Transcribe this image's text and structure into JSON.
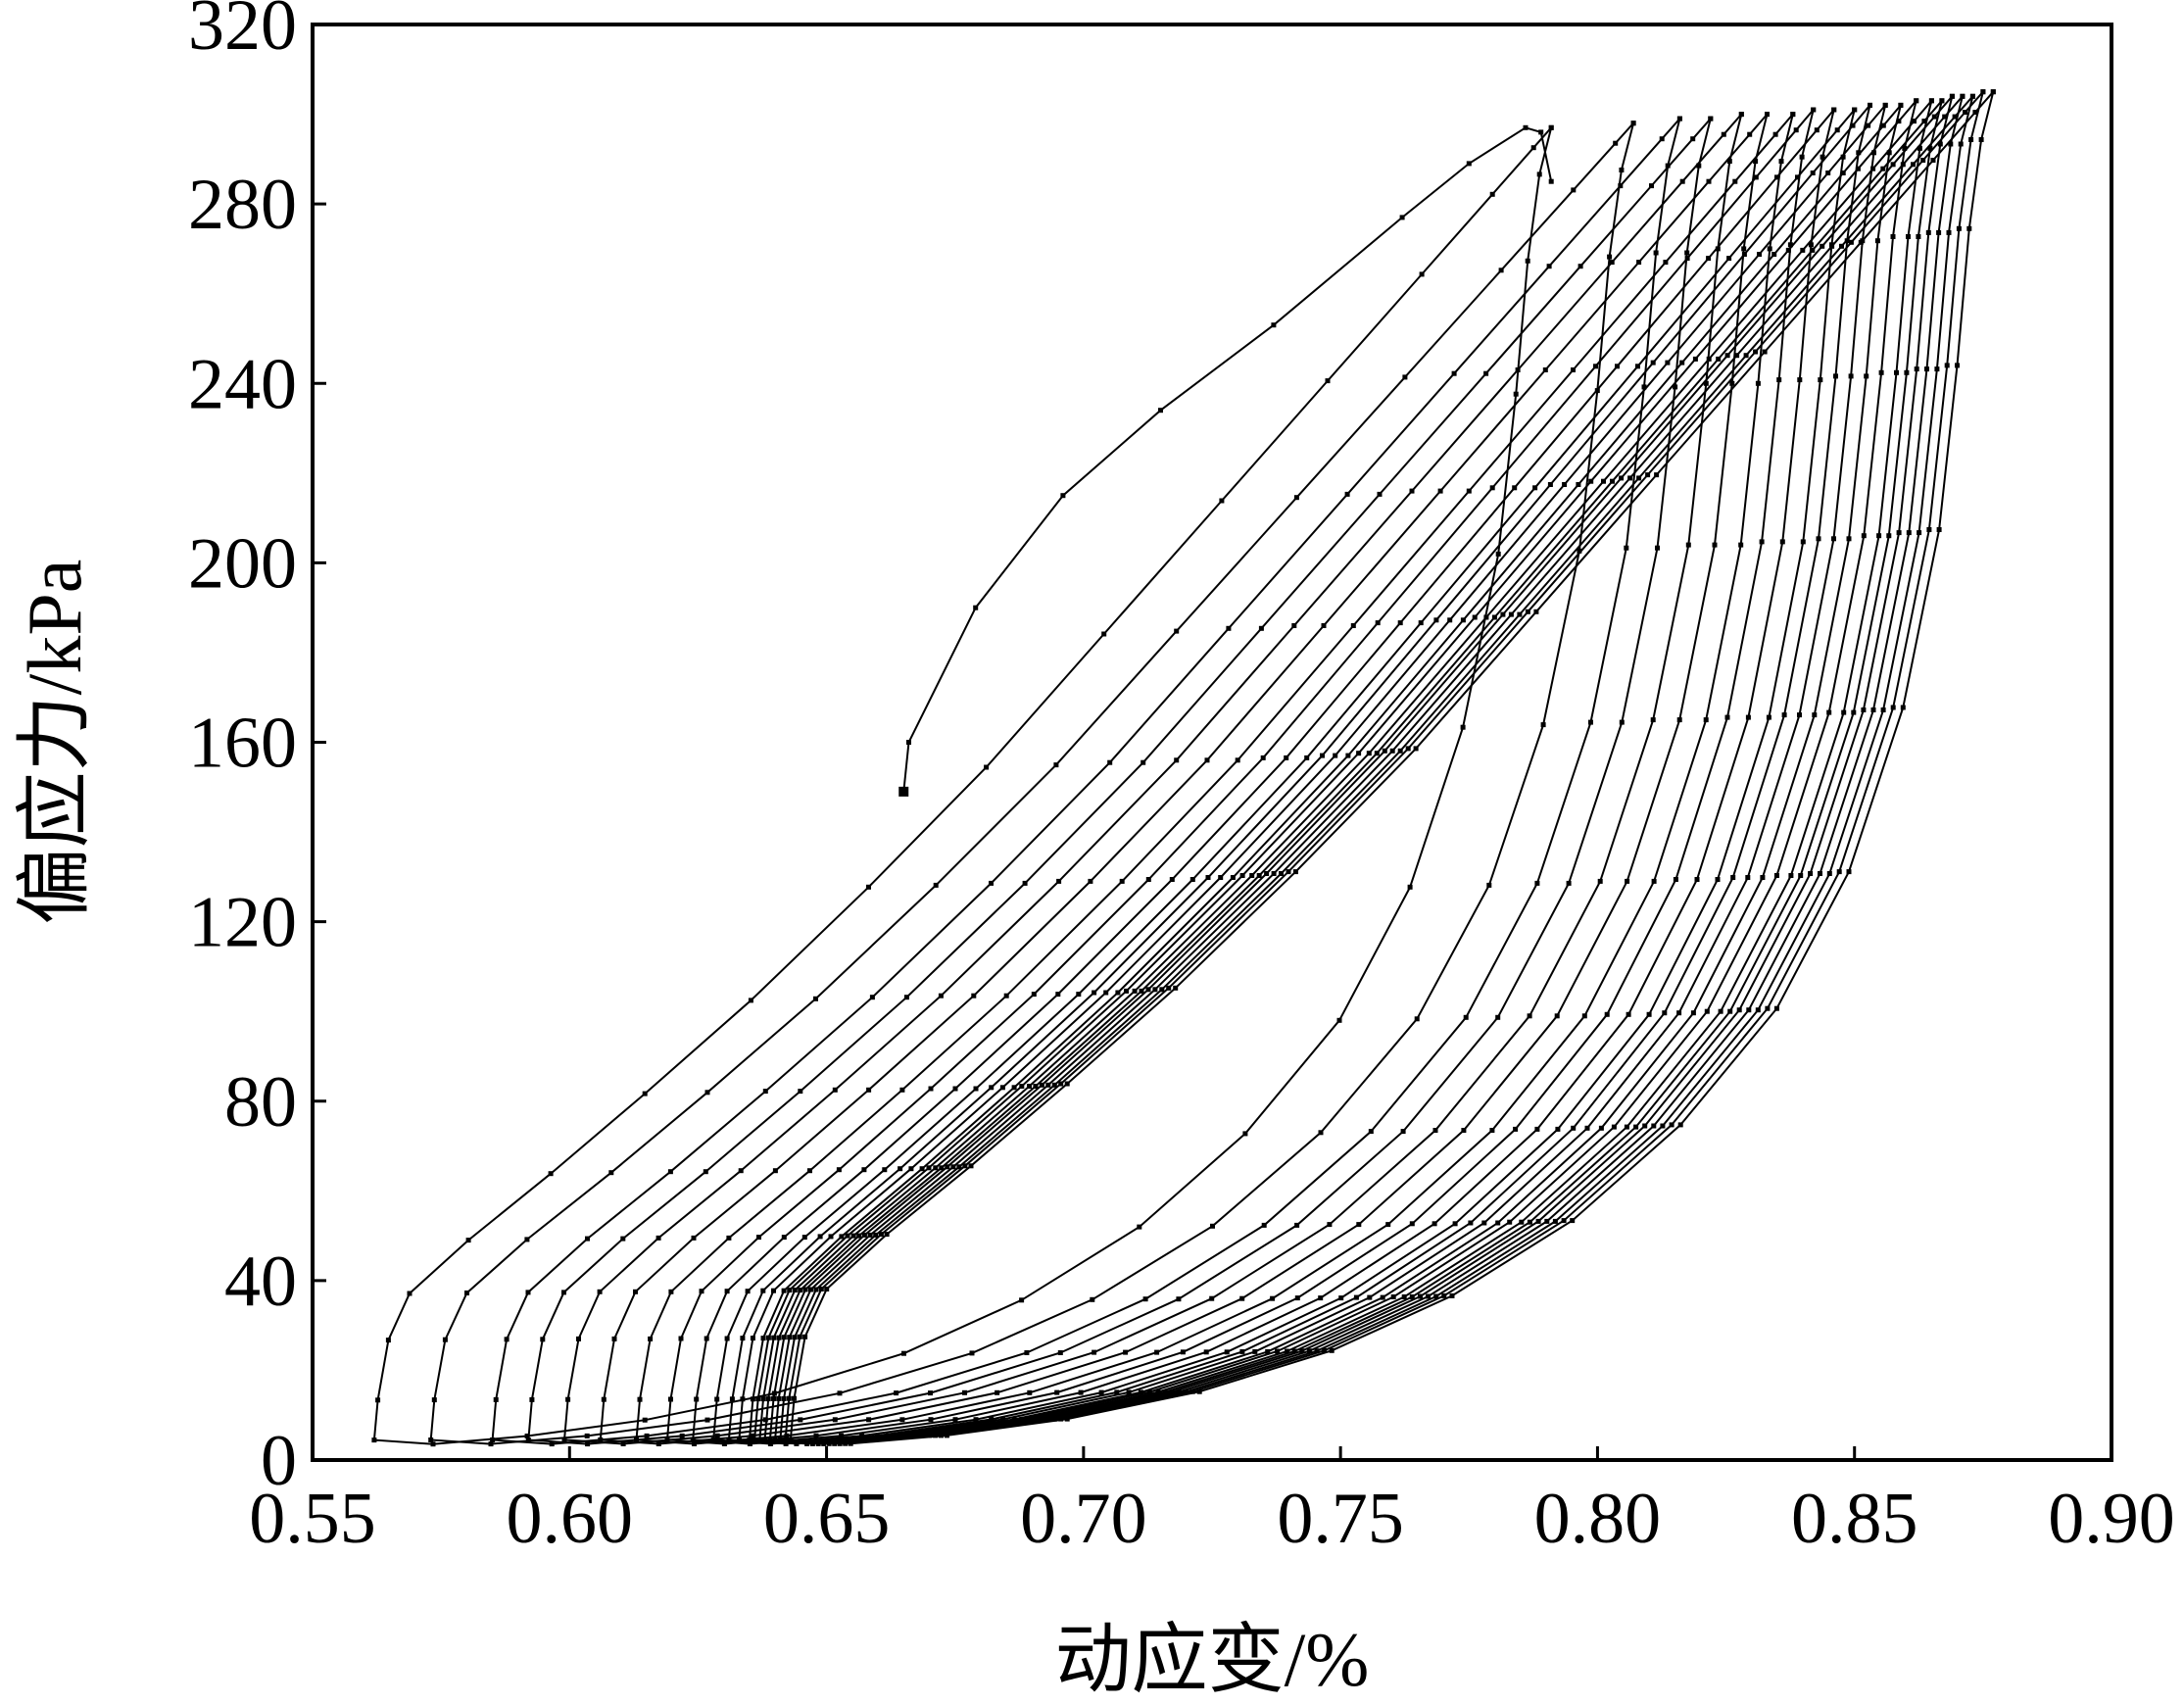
{
  "chart_data": {
    "type": "line",
    "xlabel": "动应变/%",
    "ylabel": "偏应力/kPa",
    "xlim": [
      0.55,
      0.9
    ],
    "ylim": [
      0,
      320
    ],
    "x_ticks": [
      0.55,
      0.6,
      0.65,
      0.7,
      0.75,
      0.8,
      0.85,
      0.9
    ],
    "y_ticks": [
      0,
      40,
      80,
      120,
      160,
      200,
      240,
      280,
      320
    ],
    "x_tick_labels": [
      "0.55",
      "0.60",
      "0.65",
      "0.70",
      "0.75",
      "0.80",
      "0.85",
      "0.90"
    ],
    "y_tick_labels": [
      "0",
      "40",
      "80",
      "120",
      "160",
      "200",
      "240",
      "280",
      "320"
    ],
    "grid": false,
    "legend": "none",
    "line_color": "#000000",
    "marker": "small-square",
    "loading_curve": [
      [
        0.665,
        149
      ],
      [
        0.666,
        160
      ],
      [
        0.679,
        190
      ],
      [
        0.696,
        215
      ],
      [
        0.715,
        234
      ],
      [
        0.737,
        253
      ],
      [
        0.762,
        277
      ],
      [
        0.775,
        289
      ],
      [
        0.786,
        297
      ],
      [
        0.789,
        296
      ],
      [
        0.791,
        285
      ]
    ],
    "hysteresis_loops": [
      {
        "max_strain": 0.791,
        "min_strain": 0.562,
        "peak_stress": 297
      },
      {
        "max_strain": 0.807,
        "min_strain": 0.573,
        "peak_stress": 298
      },
      {
        "max_strain": 0.816,
        "min_strain": 0.585,
        "peak_stress": 299
      },
      {
        "max_strain": 0.822,
        "min_strain": 0.592,
        "peak_stress": 299
      },
      {
        "max_strain": 0.828,
        "min_strain": 0.599,
        "peak_stress": 300
      },
      {
        "max_strain": 0.833,
        "min_strain": 0.606,
        "peak_stress": 300
      },
      {
        "max_strain": 0.838,
        "min_strain": 0.613,
        "peak_stress": 300
      },
      {
        "max_strain": 0.842,
        "min_strain": 0.619,
        "peak_stress": 301
      },
      {
        "max_strain": 0.846,
        "min_strain": 0.624,
        "peak_stress": 301
      },
      {
        "max_strain": 0.85,
        "min_strain": 0.628,
        "peak_stress": 301
      },
      {
        "max_strain": 0.853,
        "min_strain": 0.631,
        "peak_stress": 302
      },
      {
        "max_strain": 0.856,
        "min_strain": 0.633,
        "peak_stress": 302
      },
      {
        "max_strain": 0.859,
        "min_strain": 0.635,
        "peak_stress": 302
      },
      {
        "max_strain": 0.862,
        "min_strain": 0.636,
        "peak_stress": 303
      },
      {
        "max_strain": 0.865,
        "min_strain": 0.637,
        "peak_stress": 303
      },
      {
        "max_strain": 0.867,
        "min_strain": 0.638,
        "peak_stress": 303
      },
      {
        "max_strain": 0.869,
        "min_strain": 0.639,
        "peak_stress": 304
      },
      {
        "max_strain": 0.871,
        "min_strain": 0.64,
        "peak_stress": 304
      },
      {
        "max_strain": 0.873,
        "min_strain": 0.641,
        "peak_stress": 304
      },
      {
        "max_strain": 0.875,
        "min_strain": 0.642,
        "peak_stress": 305
      },
      {
        "max_strain": 0.877,
        "min_strain": 0.643,
        "peak_stress": 305
      }
    ]
  }
}
